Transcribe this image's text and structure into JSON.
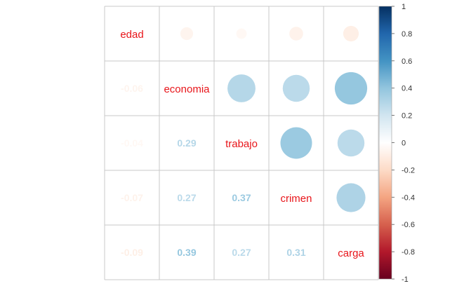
{
  "chart_data": {
    "type": "heatmap",
    "title": "",
    "variables": [
      "edad",
      "economia",
      "trabajo",
      "crimen",
      "carga"
    ],
    "matrix": [
      [
        1.0,
        -0.06,
        -0.04,
        -0.07,
        -0.09
      ],
      [
        -0.06,
        1.0,
        0.29,
        0.27,
        0.39
      ],
      [
        -0.04,
        0.29,
        1.0,
        0.37,
        0.27
      ],
      [
        -0.07,
        0.27,
        0.37,
        1.0,
        0.31
      ],
      [
        -0.09,
        0.39,
        0.27,
        0.31,
        1.0
      ]
    ],
    "value_labels": [
      [
        "",
        "",
        "",
        "",
        ""
      ],
      [
        "-0.06",
        "",
        "",
        "",
        ""
      ],
      [
        "-0.04",
        "0.29",
        "",
        "",
        ""
      ],
      [
        "-0.07",
        "0.27",
        "0.37",
        "",
        ""
      ],
      [
        "-0.09",
        "0.39",
        "0.27",
        "0.31",
        ""
      ]
    ],
    "upper_method": "circle",
    "lower_method": "number",
    "diagonal": "variable names",
    "label_color": "#E8151A",
    "grid": true,
    "colorbar": {
      "position": "right",
      "range": [
        -1,
        1
      ],
      "ticks": [
        "1",
        "0.8",
        "0.6",
        "0.4",
        "0.2",
        "0",
        "-0.2",
        "-0.4",
        "-0.6",
        "-0.8",
        "-1"
      ],
      "palette": [
        "#67001F",
        "#B2182B",
        "#D6604D",
        "#F4A582",
        "#FDDBC7",
        "#FFFFFF",
        "#D1E5F0",
        "#92C5DE",
        "#4393C3",
        "#2166AC",
        "#053061"
      ]
    }
  }
}
